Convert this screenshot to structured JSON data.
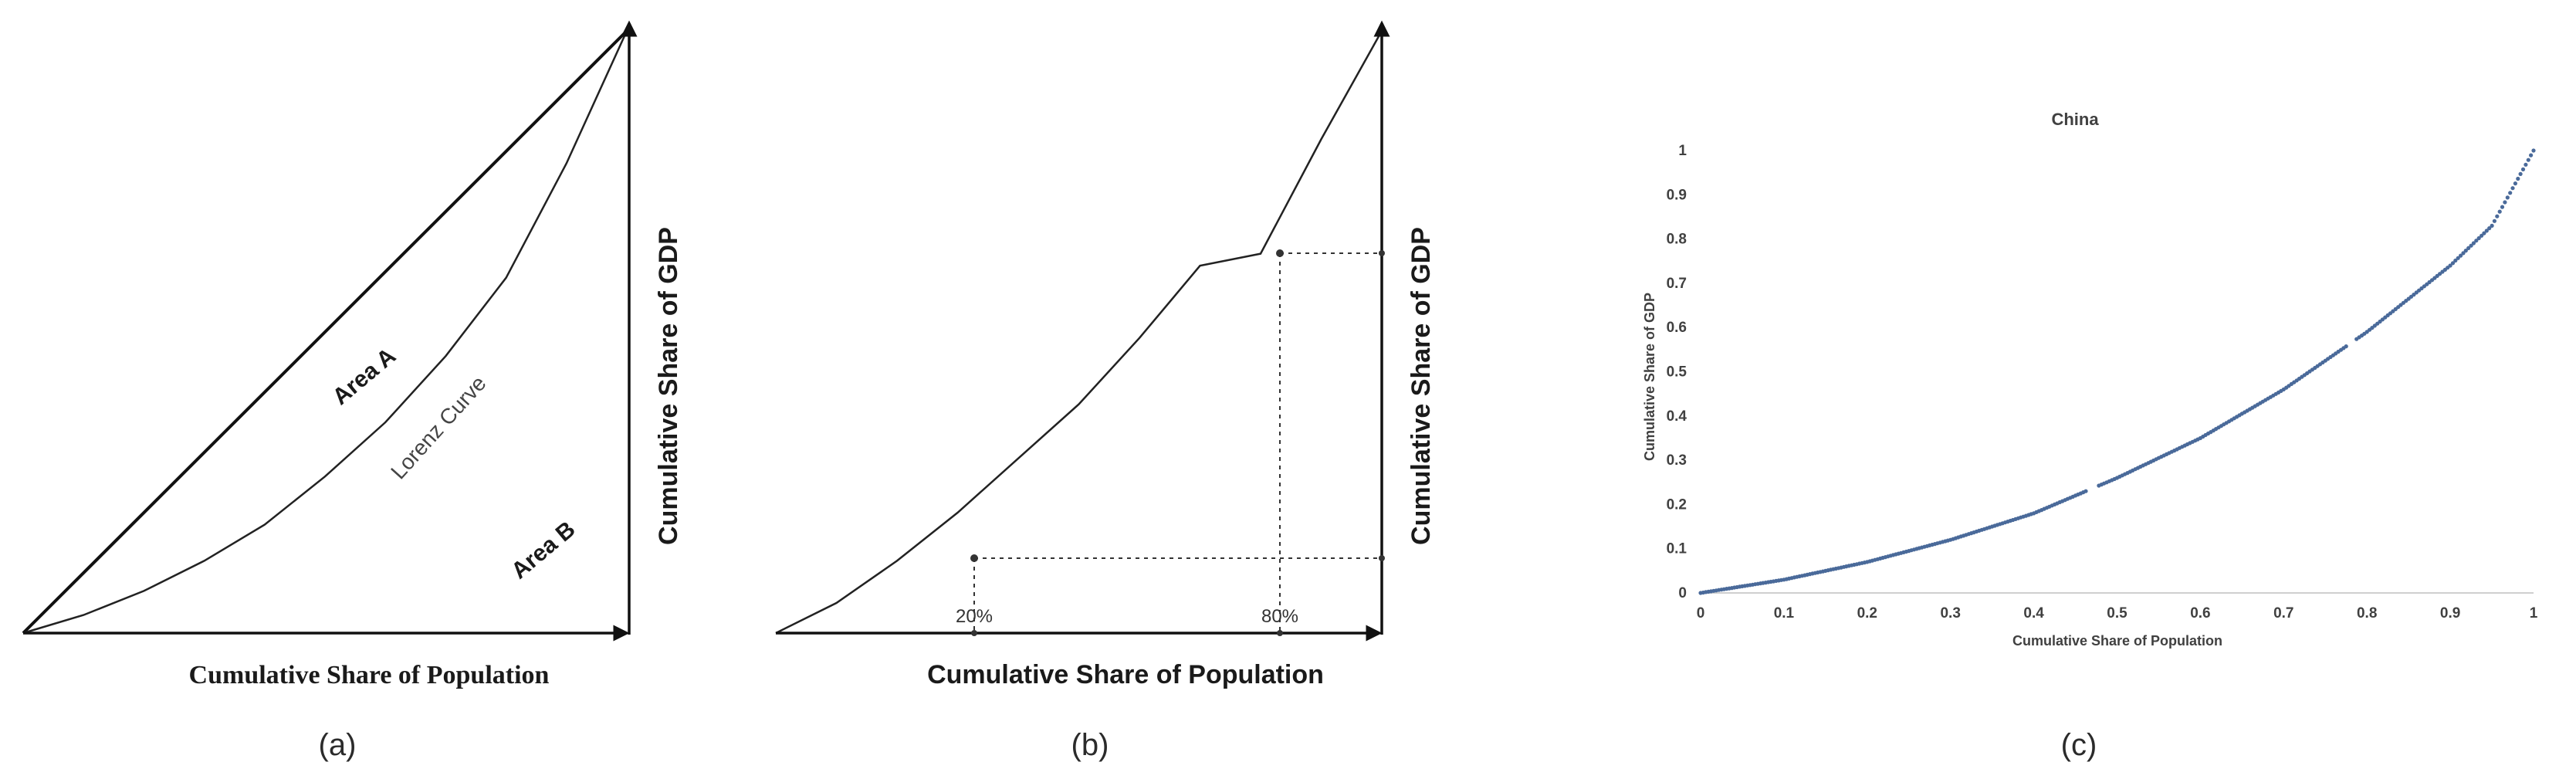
{
  "panels": {
    "a": {
      "caption": "(a)",
      "xlabel": "Cumulative Share of Population",
      "ylabel": "Cumulative Share of GDP",
      "area_a": "Area A",
      "area_b": "Area B",
      "curve_label": "Lorenz Curve"
    },
    "b": {
      "caption": "(b)",
      "xlabel": "Cumulative Share of Population",
      "ylabel": "Cumulative Share of GDP",
      "marker_1": "20%",
      "marker_2": "80%"
    },
    "c": {
      "caption": "(c)"
    }
  },
  "chart_data": [
    {
      "type": "line",
      "title": "",
      "xlabel": "Cumulative Share of Population",
      "ylabel": "Cumulative Share of GDP",
      "xlim": [
        0,
        1
      ],
      "ylim": [
        0,
        1
      ],
      "series": [
        {
          "x": [
            0,
            1
          ],
          "y": [
            0,
            1
          ],
          "style": "thick"
        },
        {
          "x": [
            0,
            0.1,
            0.2,
            0.3,
            0.4,
            0.5,
            0.6,
            0.7,
            0.8,
            0.9,
            1.0
          ],
          "y": [
            0,
            0.03,
            0.07,
            0.12,
            0.18,
            0.26,
            0.35,
            0.46,
            0.59,
            0.78,
            1.0
          ],
          "style": "thin"
        }
      ],
      "annotations": [
        "Area A",
        "Area B",
        "Lorenz Curve"
      ]
    },
    {
      "type": "line",
      "title": "",
      "xlabel": "Cumulative Share of Population",
      "ylabel": "Cumulative Share of GDP",
      "xlim": [
        0,
        1
      ],
      "ylim": [
        0,
        1
      ],
      "series": [
        {
          "x": [
            0,
            0.1,
            0.2,
            0.3,
            0.4,
            0.5,
            0.6,
            0.7,
            0.8,
            0.9,
            1.0
          ],
          "y": [
            0,
            0.05,
            0.12,
            0.2,
            0.29,
            0.38,
            0.49,
            0.61,
            0.63,
            0.82,
            1.0
          ]
        }
      ],
      "markers": [
        {
          "label": "20%",
          "x": 0.33,
          "y": 0.13
        },
        {
          "label": "80%",
          "x": 0.82,
          "y": 0.63
        }
      ]
    },
    {
      "type": "scatter",
      "title": "China",
      "xlabel": "Cumulative Share of Population",
      "ylabel": "Cumulative Share of GDP",
      "xlim": [
        0,
        1
      ],
      "ylim": [
        0,
        1
      ],
      "xticks": [
        "0",
        "0.1",
        "0.2",
        "0.3",
        "0.4",
        "0.5",
        "0.6",
        "0.7",
        "0.8",
        "0.9",
        "1"
      ],
      "yticks": [
        "0",
        "0.1",
        "0.2",
        "0.3",
        "0.4",
        "0.5",
        "0.6",
        "0.7",
        "0.8",
        "0.9",
        "1"
      ],
      "grid": false,
      "series": [
        {
          "color": "#4a6a9a",
          "x": [
            0,
            0.05,
            0.1,
            0.15,
            0.2,
            0.25,
            0.3,
            0.35,
            0.4,
            0.45,
            0.5,
            0.55,
            0.6,
            0.65,
            0.7,
            0.75,
            0.8,
            0.85,
            0.9,
            0.95,
            1.0
          ],
          "y": [
            0,
            0.015,
            0.03,
            0.05,
            0.07,
            0.095,
            0.12,
            0.15,
            0.18,
            0.22,
            0.26,
            0.305,
            0.35,
            0.405,
            0.46,
            0.525,
            0.59,
            0.665,
            0.74,
            0.83,
            1.0
          ]
        }
      ]
    }
  ]
}
